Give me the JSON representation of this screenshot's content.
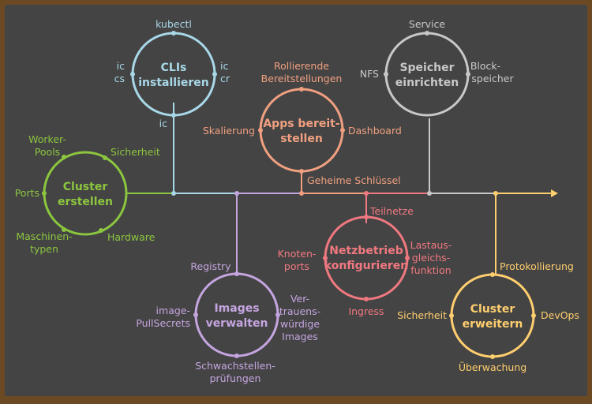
{
  "colors": {
    "frame": "#6b4a23",
    "board": "#444444",
    "green": "#8cc63f",
    "blue": "#a8d8e8",
    "purple": "#c5a5e0",
    "salmon": "#f0a080",
    "red": "#f07880",
    "gray": "#c8c8c8",
    "yellow": "#ffce6e"
  },
  "nodes": {
    "cluster_create": {
      "title": [
        "Cluster",
        "erstellen"
      ],
      "labels": {
        "top_left": [
          "Worker-",
          "Pools"
        ],
        "top_right": "Sicherheit",
        "left": "Ports",
        "bottom_left": [
          "Maschinen-",
          "typen"
        ],
        "bottom_right": "Hardware"
      }
    },
    "clis": {
      "title": [
        "CLIs",
        "installieren"
      ],
      "labels": {
        "top": "kubectl",
        "left": [
          "ic",
          "cs"
        ],
        "right": [
          "ic",
          "cr"
        ],
        "bottom": "ic"
      }
    },
    "images": {
      "title": [
        "Images",
        "verwalten"
      ],
      "labels": {
        "top": "Registry",
        "left": [
          "image-",
          "PullSecrets"
        ],
        "right": [
          "Ver-",
          "trauens-",
          "würdige",
          "Images"
        ],
        "bottom": [
          "Schwachstellen-",
          "prüfungen"
        ]
      }
    },
    "apps": {
      "title": [
        "Apps bereit-",
        "stellen"
      ],
      "labels": {
        "top": [
          "Rollierende",
          "Bereitstellungen"
        ],
        "left": "Skalierung",
        "right": "Dashboard",
        "bottom": "Geheime Schlüssel"
      }
    },
    "network": {
      "title": [
        "Netzbetrieb",
        "konfigurieren"
      ],
      "labels": {
        "top": "Teilnetze",
        "left": [
          "Knoten-",
          "ports"
        ],
        "right": [
          "Lastaus-",
          "gleichs-",
          "funktion"
        ],
        "bottom": "Ingress"
      }
    },
    "storage": {
      "title": [
        "Speicher",
        "einrichten"
      ],
      "labels": {
        "top": "Service",
        "left": "NFS",
        "right": [
          "Block-",
          "speicher"
        ]
      }
    },
    "cluster_extend": {
      "title": [
        "Cluster",
        "erweitern"
      ],
      "labels": {
        "top": "Protokollierung",
        "left": "Sicherheit",
        "right": "DevOps",
        "bottom": "Überwachung"
      }
    }
  }
}
